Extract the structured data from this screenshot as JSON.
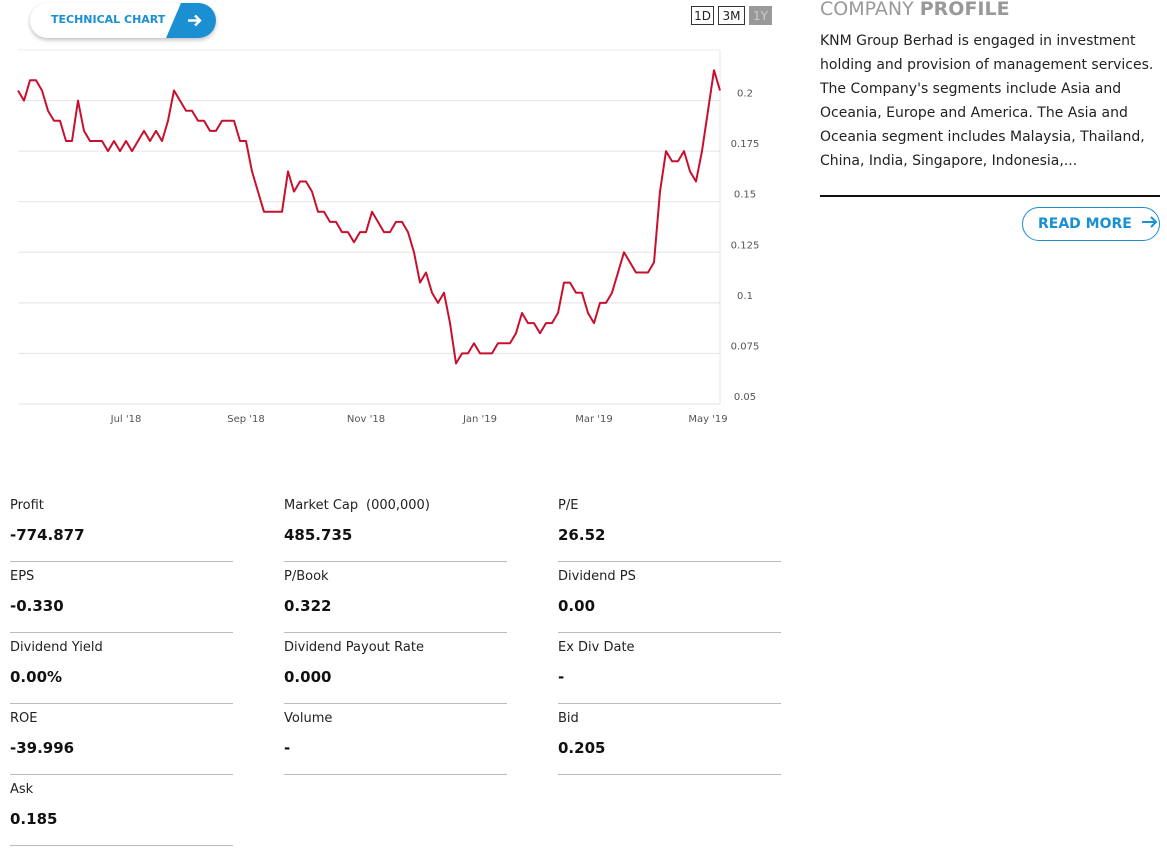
{
  "technical_chart_button": "TECHNICAL CHART",
  "range_buttons": [
    "1D",
    "3M",
    "1Y"
  ],
  "chart_data": {
    "type": "line",
    "color": "#c8102e",
    "grid": true,
    "categories": [
      null,
      null,
      null,
      null,
      null,
      null,
      null,
      null,
      null,
      null,
      null,
      null,
      null,
      null,
      null,
      null,
      null,
      null,
      "Jul '18",
      null,
      null,
      null,
      null,
      null,
      null,
      null,
      null,
      null,
      null,
      null,
      null,
      null,
      null,
      null,
      null,
      null,
      null,
      null,
      "Sep '18",
      null,
      null,
      null,
      null,
      null,
      null,
      null,
      null,
      null,
      null,
      null,
      null,
      null,
      null,
      null,
      null,
      null,
      null,
      null,
      "Nov '18",
      null,
      null,
      null,
      null,
      null,
      null,
      null,
      null,
      null,
      null,
      null,
      null,
      null,
      null,
      null,
      null,
      null,
      null,
      "Jan '19",
      null,
      null,
      null,
      null,
      null,
      null,
      null,
      null,
      null,
      null,
      null,
      null,
      null,
      null,
      null,
      null,
      null,
      null,
      "Mar '19",
      null,
      null,
      null,
      null,
      null,
      null,
      null,
      null,
      null,
      null,
      null,
      null,
      null,
      null,
      null,
      null,
      null,
      null,
      "May '19",
      null,
      null
    ],
    "values": [
      0.205,
      0.2,
      0.21,
      0.21,
      0.205,
      0.195,
      0.19,
      0.19,
      0.18,
      0.18,
      0.2,
      0.185,
      0.18,
      0.18,
      0.18,
      0.175,
      0.18,
      0.175,
      0.18,
      0.175,
      0.18,
      0.185,
      0.18,
      0.185,
      0.18,
      0.19,
      0.205,
      0.2,
      0.195,
      0.195,
      0.19,
      0.19,
      0.185,
      0.185,
      0.19,
      0.19,
      0.19,
      0.18,
      0.18,
      0.165,
      0.155,
      0.145,
      0.145,
      0.145,
      0.145,
      0.165,
      0.155,
      0.16,
      0.16,
      0.155,
      0.145,
      0.145,
      0.14,
      0.14,
      0.135,
      0.135,
      0.13,
      0.135,
      0.135,
      0.145,
      0.14,
      0.135,
      0.135,
      0.14,
      0.14,
      0.135,
      0.125,
      0.11,
      0.115,
      0.105,
      0.1,
      0.105,
      0.09,
      0.07,
      0.075,
      0.075,
      0.08,
      0.075,
      0.075,
      0.075,
      0.08,
      0.08,
      0.08,
      0.085,
      0.095,
      0.09,
      0.09,
      0.085,
      0.09,
      0.09,
      0.095,
      0.11,
      0.11,
      0.105,
      0.105,
      0.095,
      0.09,
      0.1,
      0.1,
      0.105,
      0.115,
      0.125,
      0.12,
      0.115,
      0.115,
      0.115,
      0.12,
      0.155,
      0.175,
      0.17,
      0.17,
      0.175,
      0.165,
      0.16,
      0.175,
      0.195,
      0.215,
      0.205
    ],
    "ylim": [
      0.05,
      0.225
    ],
    "yticks": [
      0.05,
      0.075,
      0.1,
      0.125,
      0.15,
      0.175,
      0.2
    ]
  },
  "company_profile": {
    "title_light": "COMPANY",
    "title_bold": "PROFILE",
    "text": "KNM Group Berhad is engaged in investment holding and provision of management services. The Company's segments include Asia and Oceania, Europe and America. The Asia and Oceania segment includes Malaysia, Thailand, China, India, Singapore, Indonesia,...",
    "read_more": "READ MORE"
  },
  "stats": [
    {
      "label": "Profit",
      "value": "-774.877"
    },
    {
      "label": "Market Cap",
      "unit": "(000,000)",
      "value": "485.735"
    },
    {
      "label": "P/E",
      "value": "26.52"
    },
    {
      "label": "EPS",
      "value": "-0.330"
    },
    {
      "label": "P/Book",
      "value": "0.322"
    },
    {
      "label": "Dividend PS",
      "value": "0.00"
    },
    {
      "label": "Dividend Yield",
      "value": "0.00%"
    },
    {
      "label": "Dividend Payout Rate",
      "value": "0.000"
    },
    {
      "label": "Ex Div Date",
      "value": "-"
    },
    {
      "label": "ROE",
      "value": "-39.996"
    },
    {
      "label": "Volume",
      "value": "-"
    },
    {
      "label": "Bid",
      "value": "0.205"
    },
    {
      "label": "Ask",
      "value": "0.185"
    }
  ]
}
